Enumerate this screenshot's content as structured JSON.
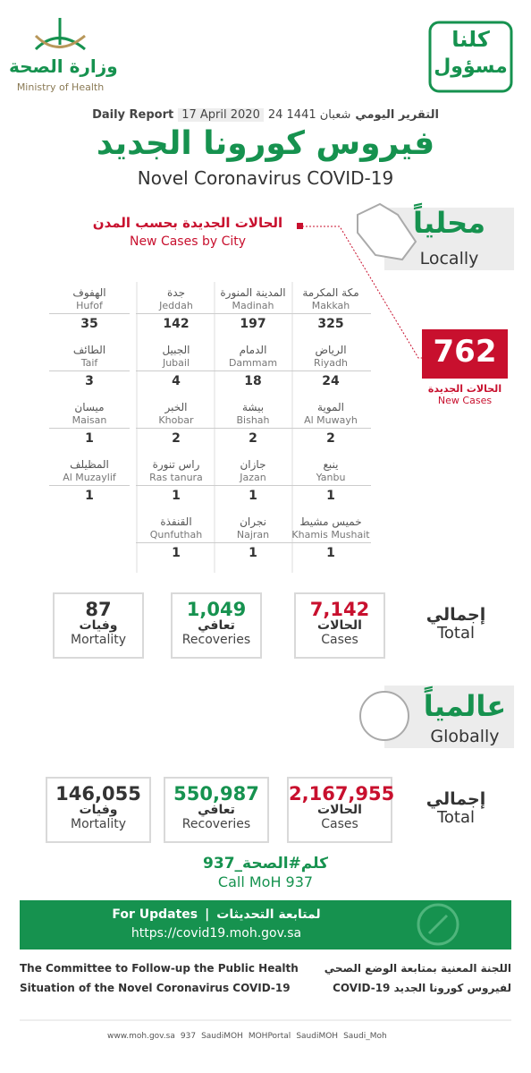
{
  "header": {
    "ministry_ar": "وزارة الصحة",
    "ministry_en": "Ministry of Health",
    "slogan_line1": "كلنا",
    "slogan_line2": "مسؤول"
  },
  "report": {
    "label_en": "Daily Report",
    "date": "17 April 2020",
    "hijri": "24 شعبان 1441",
    "label_ar": "التقرير اليومي"
  },
  "title_ar": "فيروس كورونا الجديد",
  "title_en": "Novel Coronavirus COVID-19",
  "local": {
    "heading_ar": "محلياً",
    "heading_en": "Locally",
    "cities_title_ar": "الحالات الجديدة بحسب المدن",
    "cities_title_en": "New Cases by City",
    "new_cases": {
      "value": "762",
      "label_ar": "الحالات الجديدة",
      "label_en": "New Cases"
    },
    "cities": [
      {
        "ar": "مكة المكرمة",
        "en": "Makkah",
        "value": "325"
      },
      {
        "ar": "المدينة المنورة",
        "en": "Madinah",
        "value": "197"
      },
      {
        "ar": "جدة",
        "en": "Jeddah",
        "value": "142"
      },
      {
        "ar": "الهفوف",
        "en": "Hufof",
        "value": "35"
      },
      {
        "ar": "الرياض",
        "en": "Riyadh",
        "value": "24"
      },
      {
        "ar": "الدمام",
        "en": "Dammam",
        "value": "18"
      },
      {
        "ar": "الجبيل",
        "en": "Jubail",
        "value": "4"
      },
      {
        "ar": "الطائف",
        "en": "Taif",
        "value": "3"
      },
      {
        "ar": "الموية",
        "en": "Al Muwayh",
        "value": "2"
      },
      {
        "ar": "بيشة",
        "en": "Bishah",
        "value": "2"
      },
      {
        "ar": "الخبر",
        "en": "Khobar",
        "value": "2"
      },
      {
        "ar": "ميسان",
        "en": "Maisan",
        "value": "1"
      },
      {
        "ar": "ينبع",
        "en": "Yanbu",
        "value": "1"
      },
      {
        "ar": "جازان",
        "en": "Jazan",
        "value": "1"
      },
      {
        "ar": "راس تنورة",
        "en": "Ras tanura",
        "value": "1"
      },
      {
        "ar": "المظيلف",
        "en": "Al Muzaylif",
        "value": "1"
      },
      {
        "ar": "خميس مشيط",
        "en": "Khamis Mushait",
        "value": "1"
      },
      {
        "ar": "نجران",
        "en": "Najran",
        "value": "1"
      },
      {
        "ar": "القنفذة",
        "en": "Qunfuthah",
        "value": "1"
      }
    ],
    "total_ar": "إجمالي",
    "total_en": "Total",
    "stats": [
      {
        "value": "7,142",
        "ar": "الحالات",
        "en": "Cases"
      },
      {
        "value": "1,049",
        "ar": "تعافي",
        "en": "Recoveries"
      },
      {
        "value": "87",
        "ar": "وفيات",
        "en": "Mortality"
      }
    ]
  },
  "global": {
    "heading_ar": "عالمياً",
    "heading_en": "Globally",
    "total_ar": "إجمالي",
    "total_en": "Total",
    "stats": [
      {
        "value": "2,167,955",
        "ar": "الحالات",
        "en": "Cases"
      },
      {
        "value": "550,987",
        "ar": "تعافي",
        "en": "Recoveries"
      },
      {
        "value": "146,055",
        "ar": "وفيات",
        "en": "Mortality"
      }
    ]
  },
  "call": {
    "ar": "كلم#الصحة_937",
    "en": "Call MoH 937"
  },
  "updates": {
    "en": "For Updates",
    "ar": "لمتابعة التحديثات",
    "url": "https://covid19.moh.gov.sa"
  },
  "footer": {
    "en_line1": "The Committee to Follow-up the Public Health",
    "en_line2": "Situation of the Novel Coronavirus COVID-19",
    "ar_line1": "اللجنة المعنية بمتابعة الوضع الصحي",
    "ar_line2": "لفيروس كورونا الجديد COVID-19"
  },
  "social": [
    "www.moh.gov.sa",
    "937",
    "SaudiMOH",
    "MOHPortal",
    "SaudiMOH",
    "Saudi_Moh"
  ]
}
